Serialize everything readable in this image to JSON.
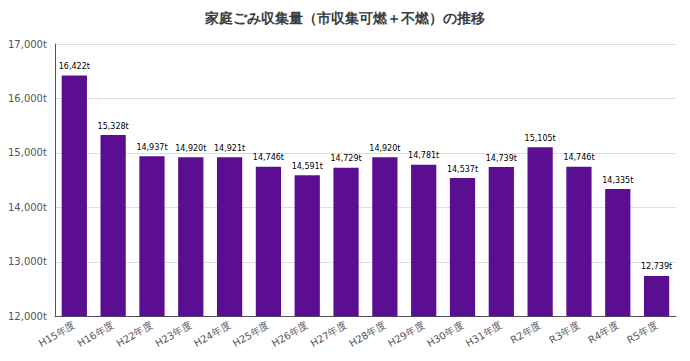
{
  "chart_data": {
    "type": "bar",
    "title": "家庭ごみ収集量（市収集可燃＋不燃）の推移",
    "categories": [
      "H15年度",
      "H16年度",
      "H22年度",
      "H23年度",
      "H24年度",
      "H25年度",
      "H26年度",
      "H27年度",
      "H28年度",
      "H29年度",
      "H30年度",
      "H31年度",
      "R2年度",
      "R3年度",
      "R4年度",
      "R5年度"
    ],
    "values": [
      16422,
      15328,
      14937,
      14920,
      14921,
      14746,
      14591,
      14729,
      14920,
      14781,
      14537,
      14739,
      15105,
      14746,
      14335,
      12739
    ],
    "value_labels": [
      "16,422t",
      "15,328t",
      "14,937t",
      "14,920t",
      "14,921t",
      "14,746t",
      "14,591t",
      "14,729t",
      "14,920t",
      "14,781t",
      "14,537t",
      "14,739t",
      "15,105t",
      "14,746t",
      "14,335t",
      "12,739t"
    ],
    "data_labels": true,
    "color": "#5B0E91",
    "ylim": [
      12000,
      17000
    ],
    "yticks": [
      {
        "value": 12000,
        "label": "12,000t"
      },
      {
        "value": 13000,
        "label": "13,000t"
      },
      {
        "value": 14000,
        "label": "14,000t"
      },
      {
        "value": 15000,
        "label": "15,000t"
      },
      {
        "value": 16000,
        "label": "16,000t"
      },
      {
        "value": 17000,
        "label": "17,000t"
      }
    ],
    "grid": true
  }
}
